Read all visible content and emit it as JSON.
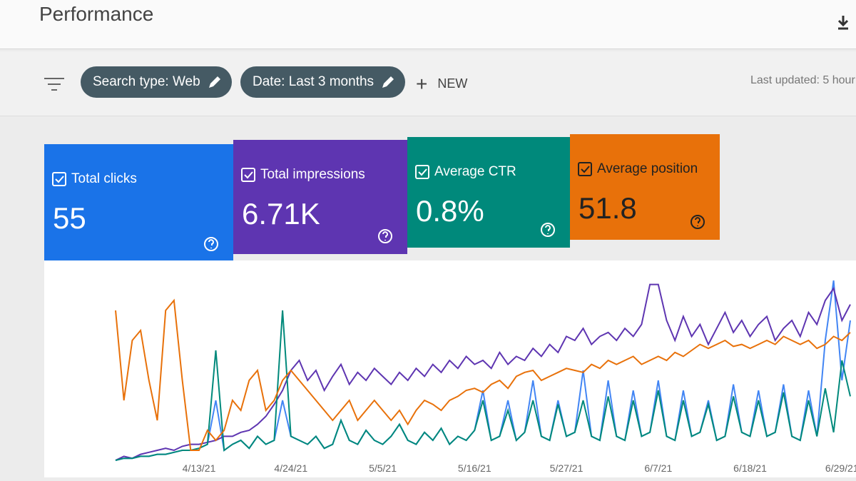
{
  "header": {
    "title": "Performance"
  },
  "filters": [
    {
      "label": "Search type: Web"
    },
    {
      "label": "Date: Last 3 months"
    }
  ],
  "new_button": "NEW",
  "last_updated": "Last updated: 5 hour",
  "metrics": [
    {
      "value": "55"
    },
    {
      "value": "6.71K"
    },
    {
      "value": "0.8%"
    },
    {
      "value": "51.8"
    }
  ],
  "chart_data": {
    "type": "line",
    "categories": [
      null,
      null,
      null,
      null,
      null,
      null,
      null,
      null,
      null,
      null,
      "4/13/21",
      null,
      null,
      null,
      null,
      null,
      null,
      null,
      null,
      null,
      null,
      "4/24/21",
      null,
      null,
      null,
      null,
      null,
      null,
      null,
      null,
      null,
      null,
      "5/5/21",
      null,
      null,
      null,
      null,
      null,
      null,
      null,
      null,
      null,
      null,
      "5/16/21",
      null,
      null,
      null,
      null,
      null,
      null,
      null,
      null,
      null,
      null,
      "5/27/21",
      null,
      null,
      null,
      null,
      null,
      null,
      null,
      null,
      null,
      null,
      "6/7/21",
      null,
      null,
      null,
      null,
      null,
      null,
      null,
      null,
      null,
      null,
      "6/18/21",
      null,
      null,
      null,
      null,
      null,
      null,
      null,
      null,
      null,
      null,
      "6/29/21",
      null
    ],
    "ylim": [
      0,
      100
    ],
    "series": [
      {
        "name": "Total clicks",
        "color": "#4285f4",
        "values": [
          0,
          1,
          1,
          2,
          2,
          3,
          3,
          4,
          5,
          5,
          6,
          8,
          30,
          5,
          8,
          10,
          6,
          12,
          8,
          10,
          30,
          12,
          10,
          8,
          12,
          6,
          8,
          20,
          10,
          8,
          15,
          10,
          8,
          12,
          18,
          10,
          8,
          14,
          10,
          16,
          8,
          12,
          10,
          15,
          35,
          10,
          12,
          30,
          10,
          14,
          40,
          12,
          10,
          30,
          12,
          14,
          45,
          12,
          10,
          40,
          12,
          10,
          35,
          12,
          14,
          40,
          12,
          10,
          35,
          12,
          14,
          30,
          10,
          12,
          38,
          14,
          12,
          35,
          12,
          14,
          38,
          12,
          10,
          35,
          12,
          60,
          90,
          40,
          70
        ]
      },
      {
        "name": "Total impressions",
        "color": "#5e35b1",
        "values": [
          0,
          2,
          1,
          3,
          4,
          5,
          6,
          5,
          7,
          8,
          8,
          9,
          10,
          12,
          12,
          14,
          15,
          18,
          22,
          28,
          35,
          45,
          50,
          40,
          45,
          35,
          42,
          48,
          38,
          44,
          40,
          46,
          42,
          38,
          44,
          40,
          46,
          42,
          48,
          44,
          50,
          46,
          52,
          48,
          50,
          46,
          54,
          48,
          52,
          50,
          56,
          52,
          58,
          54,
          62,
          60,
          66,
          58,
          62,
          64,
          60,
          66,
          62,
          68,
          88,
          88,
          70,
          60,
          72,
          62,
          68,
          58,
          66,
          74,
          64,
          70,
          62,
          68,
          72,
          60,
          66,
          70,
          62,
          74,
          68,
          80,
          86,
          70,
          78
        ]
      },
      {
        "name": "Average CTR",
        "color": "#00897b",
        "values": [
          0,
          1,
          1,
          2,
          2,
          3,
          3,
          4,
          5,
          5,
          6,
          8,
          55,
          5,
          8,
          10,
          6,
          12,
          8,
          10,
          75,
          12,
          10,
          8,
          12,
          6,
          8,
          20,
          10,
          8,
          15,
          10,
          8,
          12,
          18,
          10,
          8,
          14,
          10,
          16,
          8,
          12,
          10,
          15,
          30,
          10,
          12,
          25,
          10,
          14,
          30,
          12,
          10,
          28,
          12,
          14,
          30,
          12,
          10,
          32,
          12,
          10,
          30,
          12,
          14,
          35,
          12,
          10,
          30,
          12,
          14,
          28,
          10,
          12,
          32,
          14,
          12,
          30,
          12,
          14,
          34,
          12,
          10,
          30,
          12,
          36,
          14,
          50,
          32
        ]
      },
      {
        "name": "Average position",
        "color": "#e8710a",
        "values": [
          75,
          30,
          60,
          65,
          40,
          20,
          75,
          80,
          40,
          5,
          5,
          15,
          10,
          15,
          30,
          25,
          40,
          45,
          25,
          30,
          40,
          45,
          40,
          35,
          30,
          25,
          20,
          25,
          30,
          20,
          25,
          30,
          25,
          20,
          25,
          18,
          25,
          30,
          28,
          25,
          30,
          32,
          35,
          36,
          34,
          38,
          40,
          36,
          42,
          44,
          45,
          40,
          42,
          44,
          46,
          45,
          44,
          48,
          46,
          50,
          48,
          50,
          52,
          48,
          50,
          52,
          50,
          54,
          52,
          55,
          58,
          56,
          58,
          60,
          57,
          58,
          56,
          58,
          60,
          58,
          62,
          60,
          58,
          60,
          56,
          58,
          62,
          60,
          64
        ]
      }
    ]
  }
}
